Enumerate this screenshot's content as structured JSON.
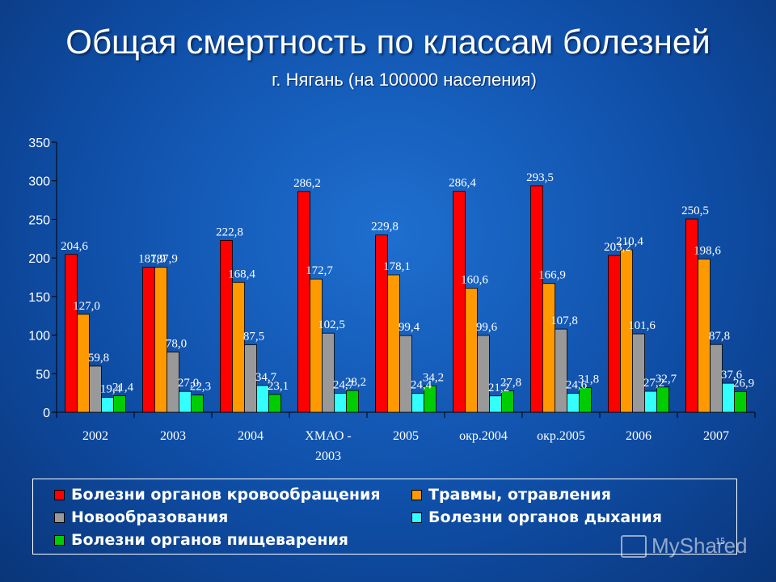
{
  "title": "Общая смертность по классам болезней",
  "subtitle": "г. Нягань (на 100000 населения)",
  "page_number": "15",
  "watermark": "MyShared",
  "chart_data": {
    "type": "bar",
    "categories": [
      [
        "2002"
      ],
      [
        "2003"
      ],
      [
        "2004"
      ],
      [
        "ХМАО -",
        "2003"
      ],
      [
        "2005"
      ],
      [
        "окр.2004"
      ],
      [
        "окр.2005"
      ],
      [
        "2006"
      ],
      [
        "2007"
      ]
    ],
    "series": [
      {
        "name": "Болезни органов кровообращения",
        "color": "#ff0000",
        "values": [
          204.6,
          187.9,
          222.8,
          286.2,
          229.8,
          286.4,
          293.5,
          203.2,
          250.5
        ],
        "labels": [
          "204,6",
          "187,9",
          "222,8",
          "286,2",
          "229,8",
          "286,4",
          "293,5",
          "203,2",
          "250,5"
        ]
      },
      {
        "name": "Травмы, отравления",
        "color": "#ff9900",
        "values": [
          127.0,
          187.9,
          168.4,
          172.7,
          178.1,
          160.6,
          166.9,
          210.4,
          198.6
        ],
        "labels": [
          "127,0",
          "187,9",
          "168,4",
          "172,7",
          "178,1",
          "160,6",
          "166,9",
          "210,4",
          "198,6"
        ]
      },
      {
        "name": "Новообразования",
        "color": "#999999",
        "values": [
          59.8,
          78.0,
          87.5,
          102.5,
          99.4,
          99.6,
          107.8,
          101.6,
          87.8
        ],
        "labels": [
          "59,8",
          "78,0",
          "87,5",
          "102,5",
          "99,4",
          "99,6",
          "107,8",
          "101,6",
          "87,8"
        ]
      },
      {
        "name": "Болезни органов дыхания",
        "color": "#33ffff",
        "values": [
          19.4,
          27.0,
          34.7,
          24.7,
          24.4,
          21.2,
          24.6,
          27.2,
          37.6
        ],
        "labels": [
          "19,4",
          "27,0",
          "34,7",
          "24,7",
          "24,4",
          "21,2",
          "24,6",
          "27,2",
          "37,6"
        ]
      },
      {
        "name": "Болезни органов пищеварения",
        "color": "#00cc00",
        "values": [
          21.4,
          22.3,
          23.1,
          28.2,
          34.2,
          27.8,
          31.8,
          32.7,
          26.9
        ],
        "labels": [
          "21,4",
          "22,3",
          "23,1",
          "28,2",
          "34,2",
          "27,8",
          "31,8",
          "32,7",
          "26,9"
        ]
      }
    ],
    "y_ticks": [
      "0",
      "50",
      "100",
      "150",
      "200",
      "250",
      "300",
      "350"
    ],
    "ylim": [
      0,
      350
    ],
    "grid": false,
    "legend_position": "bottom"
  }
}
